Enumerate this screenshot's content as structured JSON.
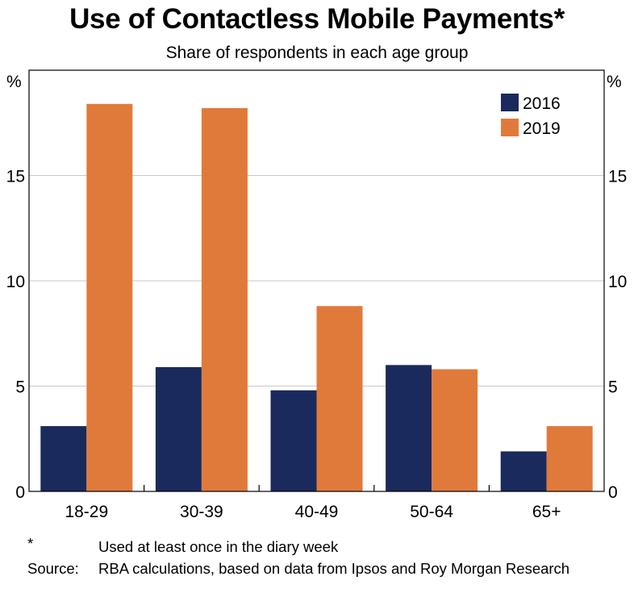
{
  "chart_data": {
    "type": "bar",
    "title": "Use of Contactless Mobile Payments*",
    "subtitle": "Share of respondents in each age group",
    "ylabel_left": "%",
    "ylabel_right": "%",
    "categories": [
      "18-29",
      "30-39",
      "40-49",
      "50-64",
      "65+"
    ],
    "series": [
      {
        "name": "2016",
        "color": "#1b2a5c",
        "values": [
          3.1,
          5.9,
          4.8,
          6.0,
          1.9
        ]
      },
      {
        "name": "2019",
        "color": "#e07a3b",
        "values": [
          18.4,
          18.2,
          8.8,
          5.8,
          3.1
        ]
      }
    ],
    "ylim": [
      0,
      20
    ],
    "yticks": [
      0,
      5,
      10,
      15
    ],
    "ytick_labels": [
      "0",
      "5",
      "10",
      "15"
    ],
    "grid": true,
    "legend_position": "top-right"
  },
  "footnotes": {
    "star_key": "*",
    "star_text": "Used at least once in the diary week",
    "source_key": "Source:",
    "source_text": "RBA calculations, based on data from Ipsos and Roy Morgan Research"
  }
}
